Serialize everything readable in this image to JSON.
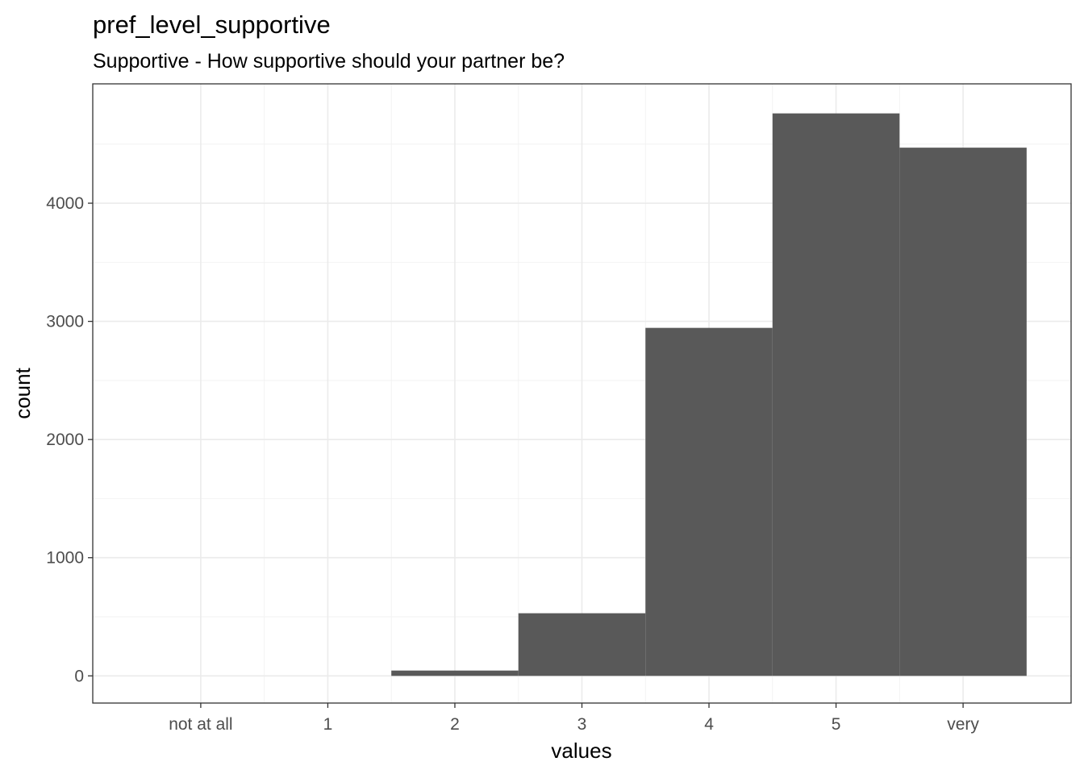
{
  "chart_data": {
    "type": "bar",
    "title": "pref_level_supportive",
    "subtitle": "Supportive - How supportive should your partner be?",
    "xlabel": "values",
    "ylabel": "count",
    "categories": [
      "not at all",
      "1",
      "2",
      "3",
      "4",
      "5",
      "very"
    ],
    "values": [
      0,
      0,
      45,
      530,
      2945,
      4760,
      4470
    ],
    "ylim": [
      -230,
      5010
    ],
    "yticks": [
      0,
      1000,
      2000,
      3000,
      4000
    ],
    "ytick_labels": [
      "0",
      "1000",
      "2000",
      "3000",
      "4000"
    ],
    "grid": true,
    "bar_color": "#595959",
    "legend": "none"
  }
}
